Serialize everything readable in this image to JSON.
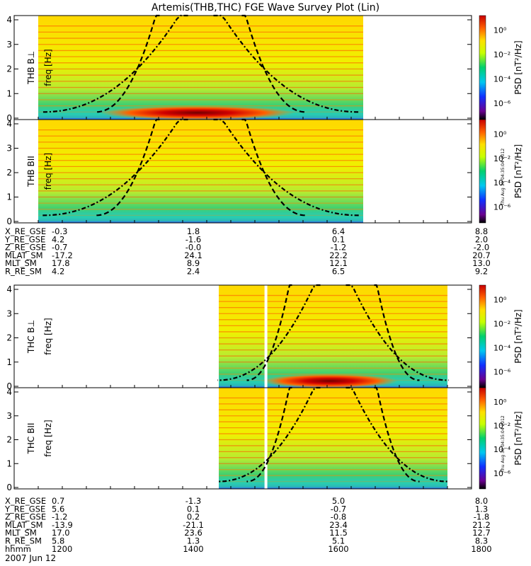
{
  "title": "Artemis(THB,THC) FGE Wave Survey Plot (Lin)",
  "colorbar": {
    "label": "PSD [nT²/Hz]",
    "ticks": [
      "10⁰",
      "10⁻²",
      "10⁻⁴",
      "10⁻⁶"
    ],
    "timestamp": "Thu Aug 30 04:35:04 2012"
  },
  "chart_data": [
    {
      "type": "heatmap",
      "panel": "THB B⊥",
      "ylabel_probe": "THB B⊥",
      "ylabel": "freq [Hz]",
      "ylim": [
        0,
        4
      ],
      "yticks": [
        "0",
        "1",
        "2",
        "3",
        "4"
      ],
      "data_time_range": [
        "1200",
        "1630"
      ]
    },
    {
      "type": "heatmap",
      "panel": "THB B∥",
      "ylabel_probe": "THB BII",
      "ylabel": "freq [Hz]",
      "ylim": [
        0,
        4
      ],
      "yticks": [
        "0",
        "1",
        "2",
        "3",
        "4"
      ],
      "data_time_range": [
        "1200",
        "1630"
      ]
    },
    {
      "type": "heatmap",
      "panel": "THC B⊥",
      "ylabel_probe": "THC B⊥",
      "ylabel": "freq [Hz]",
      "ylim": [
        0,
        4
      ],
      "yticks": [
        "0",
        "1",
        "2",
        "3",
        "4"
      ],
      "data_time_range": [
        "1430",
        "1740"
      ]
    },
    {
      "type": "heatmap",
      "panel": "THC B∥",
      "ylabel_probe": "THC BII",
      "ylabel": "freq [Hz]",
      "ylim": [
        0,
        4
      ],
      "yticks": [
        "0",
        "1",
        "2",
        "3",
        "4"
      ],
      "data_time_range": [
        "1430",
        "1740"
      ]
    }
  ],
  "ephemeris_thb": {
    "labels": [
      "X_RE_GSE",
      "Y_RE_GSE",
      "Z_RE_GSE",
      "MLAT_SM",
      "MLT_SM",
      "R_RE_SM"
    ],
    "rows": [
      [
        "-0.3",
        "1.8",
        "6.4",
        "8.8"
      ],
      [
        "4.2",
        "-1.6",
        "0.1",
        "2.0"
      ],
      [
        "-0.7",
        "-0.0",
        "-1.2",
        "-2.0"
      ],
      [
        "-17.2",
        "24.1",
        "22.2",
        "20.7"
      ],
      [
        "17.8",
        "8.9",
        "12.1",
        "13.0"
      ],
      [
        "4.2",
        "2.4",
        "6.5",
        "9.2"
      ]
    ]
  },
  "ephemeris_thc": {
    "labels": [
      "X_RE_GSE",
      "Y_RE_GSE",
      "Z_RE_GSE",
      "MLAT_SM",
      "MLT_SM",
      "R_RE_SM",
      "hhmm"
    ],
    "rows": [
      [
        "0.7",
        "-1.3",
        "5.0",
        "8.0"
      ],
      [
        "5.6",
        "0.1",
        "-0.7",
        "1.3"
      ],
      [
        "-1.2",
        "0.2",
        "-0.8",
        "-1.8"
      ],
      [
        "-13.9",
        "-21.1",
        "23.4",
        "21.2"
      ],
      [
        "17.0",
        "23.6",
        "11.5",
        "12.7"
      ],
      [
        "5.8",
        "1.3",
        "5.1",
        "8.3"
      ],
      [
        "1200",
        "1400",
        "1600",
        "1800"
      ]
    ]
  },
  "date": "2007 Jun 12"
}
